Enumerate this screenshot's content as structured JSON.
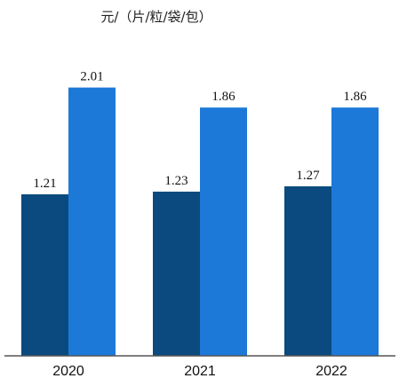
{
  "chart_data": {
    "type": "bar",
    "unit_label": "元/（片/粒/袋/包）",
    "categories": [
      "2020",
      "2021",
      "2022"
    ],
    "series": [
      {
        "values": [
          1.21,
          1.23,
          1.27
        ],
        "color": "#0a4a7e"
      },
      {
        "values": [
          2.01,
          1.86,
          1.86
        ],
        "color": "#1c79d8"
      }
    ],
    "value_labels": [
      [
        "1.21",
        "1.23",
        "1.27"
      ],
      [
        "2.01",
        "1.86",
        "1.86"
      ]
    ],
    "ylim": [
      0,
      2.3
    ],
    "grid": false,
    "legend": "none",
    "axis_color": "#555555"
  }
}
